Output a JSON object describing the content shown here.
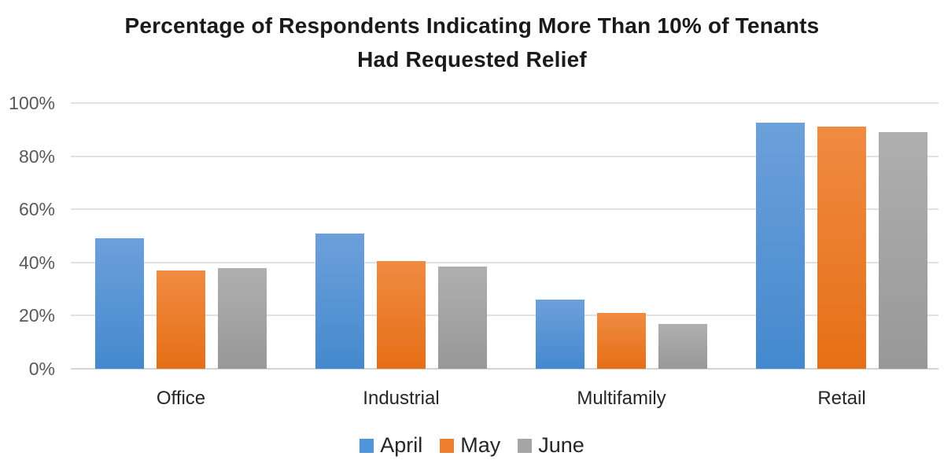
{
  "header": {
    "title_lines": [
      "Percentage of Respondents Indicating More Than 10% of Tenants",
      "Had Requested Relief"
    ]
  },
  "chart_data": {
    "type": "bar",
    "title": "Percentage of Respondents Indicating More Than 10% of Tenants Had Requested Relief",
    "categories": [
      "Office",
      "Industrial",
      "Multifamily",
      "Retail"
    ],
    "series": [
      {
        "name": "April",
        "legend_color": "#4E96D9",
        "color_top": "#6CA0DB",
        "color_bottom": "#4489CE",
        "values": [
          49,
          51,
          26,
          92.5
        ]
      },
      {
        "name": "May",
        "legend_color": "#EE7D2E",
        "color_top": "#F08B42",
        "color_bottom": "#E66F16",
        "values": [
          37,
          40.5,
          21,
          91
        ]
      },
      {
        "name": "June",
        "legend_color": "#A5A5A5",
        "color_top": "#AFAFAF",
        "color_bottom": "#989898",
        "values": [
          38,
          38.5,
          17,
          89
        ]
      }
    ],
    "xlabel": "",
    "ylabel": "",
    "ylim": [
      0,
      100
    ],
    "yticks": [
      "0%",
      "20%",
      "40%",
      "60%",
      "80%",
      "100%"
    ],
    "grid": true,
    "legend_position": "bottom"
  },
  "colors": {
    "gridline": "#dfe1e8",
    "axis_line": "#d2d5dc",
    "axis_text": "#595959",
    "category_text": "#262626",
    "title_text": "#1a1a1a",
    "background": "#ffffff"
  }
}
